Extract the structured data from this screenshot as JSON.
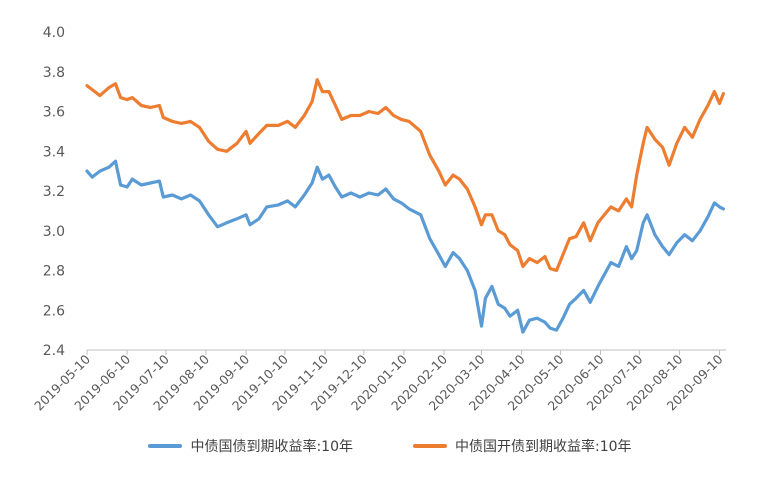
{
  "chart_data": {
    "type": "line",
    "title": "",
    "xlabel": "",
    "ylabel": "",
    "ylim": [
      2.4,
      4.0
    ],
    "yticks": [
      "2.4",
      "2.6",
      "2.8",
      "3.0",
      "3.2",
      "3.4",
      "3.6",
      "3.8",
      "4.0"
    ],
    "xlim": [
      "2019-05-10",
      "2020-09-15"
    ],
    "xticks": [
      "2019-05-10",
      "2019-06-10",
      "2019-07-10",
      "2019-08-10",
      "2019-09-10",
      "2019-10-10",
      "2019-11-10",
      "2019-12-10",
      "2020-01-10",
      "2020-02-10",
      "2020-03-10",
      "2020-04-10",
      "2020-05-10",
      "2020-06-10",
      "2020-07-10",
      "2020-08-10",
      "2020-09-10"
    ],
    "grid": false,
    "legend_position": "bottom",
    "series": [
      {
        "name": "中债国债到期收益率:10年",
        "color": "#5b9bd5",
        "points": [
          [
            "2019-05-10",
            3.3
          ],
          [
            "2019-05-14",
            3.27
          ],
          [
            "2019-05-20",
            3.3
          ],
          [
            "2019-05-27",
            3.32
          ],
          [
            "2019-06-01",
            3.35
          ],
          [
            "2019-06-05",
            3.23
          ],
          [
            "2019-06-10",
            3.22
          ],
          [
            "2019-06-14",
            3.26
          ],
          [
            "2019-06-21",
            3.23
          ],
          [
            "2019-06-28",
            3.24
          ],
          [
            "2019-07-05",
            3.25
          ],
          [
            "2019-07-08",
            3.17
          ],
          [
            "2019-07-15",
            3.18
          ],
          [
            "2019-07-22",
            3.16
          ],
          [
            "2019-07-29",
            3.18
          ],
          [
            "2019-08-05",
            3.15
          ],
          [
            "2019-08-12",
            3.08
          ],
          [
            "2019-08-19",
            3.02
          ],
          [
            "2019-08-26",
            3.04
          ],
          [
            "2019-09-03",
            3.06
          ],
          [
            "2019-09-10",
            3.08
          ],
          [
            "2019-09-13",
            3.03
          ],
          [
            "2019-09-20",
            3.06
          ],
          [
            "2019-09-26",
            3.12
          ],
          [
            "2019-10-05",
            3.13
          ],
          [
            "2019-10-12",
            3.15
          ],
          [
            "2019-10-18",
            3.12
          ],
          [
            "2019-10-25",
            3.18
          ],
          [
            "2019-10-31",
            3.24
          ],
          [
            "2019-11-04",
            3.32
          ],
          [
            "2019-11-08",
            3.26
          ],
          [
            "2019-11-13",
            3.28
          ],
          [
            "2019-11-18",
            3.22
          ],
          [
            "2019-11-23",
            3.17
          ],
          [
            "2019-11-30",
            3.19
          ],
          [
            "2019-12-07",
            3.17
          ],
          [
            "2019-12-14",
            3.19
          ],
          [
            "2019-12-21",
            3.18
          ],
          [
            "2019-12-27",
            3.21
          ],
          [
            "2020-01-02",
            3.16
          ],
          [
            "2020-01-08",
            3.14
          ],
          [
            "2020-01-14",
            3.11
          ],
          [
            "2020-01-23",
            3.08
          ],
          [
            "2020-01-30",
            2.96
          ],
          [
            "2020-02-06",
            2.88
          ],
          [
            "2020-02-11",
            2.82
          ],
          [
            "2020-02-17",
            2.89
          ],
          [
            "2020-02-22",
            2.86
          ],
          [
            "2020-02-28",
            2.8
          ],
          [
            "2020-03-05",
            2.7
          ],
          [
            "2020-03-10",
            2.52
          ],
          [
            "2020-03-13",
            2.66
          ],
          [
            "2020-03-18",
            2.72
          ],
          [
            "2020-03-23",
            2.63
          ],
          [
            "2020-03-28",
            2.61
          ],
          [
            "2020-04-01",
            2.57
          ],
          [
            "2020-04-07",
            2.6
          ],
          [
            "2020-04-11",
            2.49
          ],
          [
            "2020-04-16",
            2.55
          ],
          [
            "2020-04-22",
            2.56
          ],
          [
            "2020-04-28",
            2.54
          ],
          [
            "2020-05-02",
            2.51
          ],
          [
            "2020-05-07",
            2.5
          ],
          [
            "2020-05-12",
            2.56
          ],
          [
            "2020-05-17",
            2.63
          ],
          [
            "2020-05-22",
            2.66
          ],
          [
            "2020-05-28",
            2.7
          ],
          [
            "2020-06-02",
            2.64
          ],
          [
            "2020-06-08",
            2.72
          ],
          [
            "2020-06-13",
            2.78
          ],
          [
            "2020-06-18",
            2.84
          ],
          [
            "2020-06-24",
            2.82
          ],
          [
            "2020-06-30",
            2.92
          ],
          [
            "2020-07-04",
            2.86
          ],
          [
            "2020-07-08",
            2.9
          ],
          [
            "2020-07-13",
            3.04
          ],
          [
            "2020-07-16",
            3.08
          ],
          [
            "2020-07-22",
            2.98
          ],
          [
            "2020-07-28",
            2.92
          ],
          [
            "2020-08-02",
            2.88
          ],
          [
            "2020-08-08",
            2.94
          ],
          [
            "2020-08-14",
            2.98
          ],
          [
            "2020-08-20",
            2.95
          ],
          [
            "2020-08-26",
            3.0
          ],
          [
            "2020-09-01",
            3.07
          ],
          [
            "2020-09-06",
            3.14
          ],
          [
            "2020-09-10",
            3.12
          ],
          [
            "2020-09-13",
            3.11
          ]
        ]
      },
      {
        "name": "中债国开债到期收益率:10年",
        "color": "#ed7d31",
        "points": [
          [
            "2019-05-10",
            3.73
          ],
          [
            "2019-05-14",
            3.71
          ],
          [
            "2019-05-20",
            3.68
          ],
          [
            "2019-05-27",
            3.72
          ],
          [
            "2019-06-01",
            3.74
          ],
          [
            "2019-06-05",
            3.67
          ],
          [
            "2019-06-10",
            3.66
          ],
          [
            "2019-06-14",
            3.67
          ],
          [
            "2019-06-21",
            3.63
          ],
          [
            "2019-06-28",
            3.62
          ],
          [
            "2019-07-05",
            3.63
          ],
          [
            "2019-07-08",
            3.57
          ],
          [
            "2019-07-15",
            3.55
          ],
          [
            "2019-07-22",
            3.54
          ],
          [
            "2019-07-29",
            3.55
          ],
          [
            "2019-08-05",
            3.52
          ],
          [
            "2019-08-12",
            3.45
          ],
          [
            "2019-08-19",
            3.41
          ],
          [
            "2019-08-26",
            3.4
          ],
          [
            "2019-09-03",
            3.44
          ],
          [
            "2019-09-10",
            3.5
          ],
          [
            "2019-09-13",
            3.44
          ],
          [
            "2019-09-20",
            3.49
          ],
          [
            "2019-09-26",
            3.53
          ],
          [
            "2019-10-05",
            3.53
          ],
          [
            "2019-10-12",
            3.55
          ],
          [
            "2019-10-18",
            3.52
          ],
          [
            "2019-10-25",
            3.58
          ],
          [
            "2019-10-31",
            3.65
          ],
          [
            "2019-11-04",
            3.76
          ],
          [
            "2019-11-08",
            3.7
          ],
          [
            "2019-11-13",
            3.7
          ],
          [
            "2019-11-18",
            3.63
          ],
          [
            "2019-11-23",
            3.56
          ],
          [
            "2019-11-30",
            3.58
          ],
          [
            "2019-12-07",
            3.58
          ],
          [
            "2019-12-14",
            3.6
          ],
          [
            "2019-12-21",
            3.59
          ],
          [
            "2019-12-27",
            3.62
          ],
          [
            "2020-01-02",
            3.58
          ],
          [
            "2020-01-08",
            3.56
          ],
          [
            "2020-01-14",
            3.55
          ],
          [
            "2020-01-23",
            3.5
          ],
          [
            "2020-01-30",
            3.38
          ],
          [
            "2020-02-06",
            3.3
          ],
          [
            "2020-02-11",
            3.23
          ],
          [
            "2020-02-17",
            3.28
          ],
          [
            "2020-02-22",
            3.26
          ],
          [
            "2020-02-28",
            3.21
          ],
          [
            "2020-03-05",
            3.12
          ],
          [
            "2020-03-10",
            3.03
          ],
          [
            "2020-03-13",
            3.08
          ],
          [
            "2020-03-18",
            3.08
          ],
          [
            "2020-03-23",
            3.0
          ],
          [
            "2020-03-28",
            2.98
          ],
          [
            "2020-04-01",
            2.93
          ],
          [
            "2020-04-07",
            2.9
          ],
          [
            "2020-04-11",
            2.82
          ],
          [
            "2020-04-16",
            2.86
          ],
          [
            "2020-04-22",
            2.84
          ],
          [
            "2020-04-28",
            2.87
          ],
          [
            "2020-05-02",
            2.81
          ],
          [
            "2020-05-07",
            2.8
          ],
          [
            "2020-05-12",
            2.88
          ],
          [
            "2020-05-17",
            2.96
          ],
          [
            "2020-05-22",
            2.97
          ],
          [
            "2020-05-28",
            3.04
          ],
          [
            "2020-06-02",
            2.95
          ],
          [
            "2020-06-08",
            3.04
          ],
          [
            "2020-06-13",
            3.08
          ],
          [
            "2020-06-18",
            3.12
          ],
          [
            "2020-06-24",
            3.1
          ],
          [
            "2020-06-30",
            3.16
          ],
          [
            "2020-07-04",
            3.12
          ],
          [
            "2020-07-08",
            3.28
          ],
          [
            "2020-07-13",
            3.44
          ],
          [
            "2020-07-16",
            3.52
          ],
          [
            "2020-07-22",
            3.46
          ],
          [
            "2020-07-28",
            3.42
          ],
          [
            "2020-08-02",
            3.33
          ],
          [
            "2020-08-08",
            3.44
          ],
          [
            "2020-08-14",
            3.52
          ],
          [
            "2020-08-20",
            3.47
          ],
          [
            "2020-08-26",
            3.56
          ],
          [
            "2020-09-01",
            3.63
          ],
          [
            "2020-09-06",
            3.7
          ],
          [
            "2020-09-10",
            3.64
          ],
          [
            "2020-09-13",
            3.69
          ]
        ]
      }
    ]
  }
}
